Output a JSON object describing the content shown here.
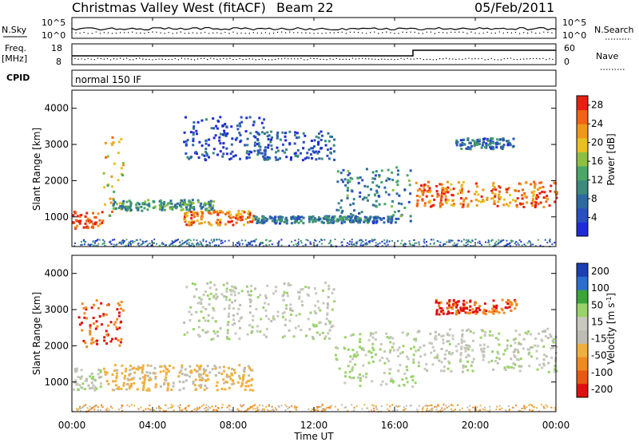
{
  "header": {
    "station": "Christmas Valley West (fitACF)",
    "beam": "Beam 22",
    "date": "05/Feb/2011"
  },
  "top_panels": {
    "nsky_label": "N.Sky",
    "nsky_ticks": [
      "10^5",
      "10^0"
    ],
    "nsearch_label": "N.Search",
    "nsearch_ticks": [
      "10^5",
      "10^0"
    ],
    "freq_label_line1": "Freq.",
    "freq_label_line2": "[MHz]",
    "freq_ticks": [
      "18",
      "8"
    ],
    "nave_label": "Nave",
    "nave_ticks": [
      "60",
      "0"
    ],
    "cpid_label": "CPID",
    "cpid_value": "normal 150 IF"
  },
  "colors": {
    "power_scale": [
      "#1f2bd8",
      "#2a4fc2",
      "#2e6aa0",
      "#3c8a7c",
      "#4aa768",
      "#8dc040",
      "#e8c020",
      "#f0961a",
      "#f06414",
      "#e82010"
    ],
    "velocity_scale": [
      "#1b3fb5",
      "#2a6fd0",
      "#3aa63a",
      "#9ad36a",
      "#c8c8be",
      "#bdbdb5",
      "#f0b040",
      "#f08a20",
      "#e85a10",
      "#e01010"
    ]
  },
  "chart_data": [
    {
      "type": "heatmap",
      "title": "",
      "quantity": "Power",
      "ylabel": "Slant Range [km]",
      "xlabel": "Time UT",
      "xlim": [
        "00:00",
        "00:00"
      ],
      "x_ticks": [
        "00:00",
        "04:00",
        "08:00",
        "12:00",
        "16:00",
        "20:00",
        "00:00"
      ],
      "ylim": [
        180,
        4500
      ],
      "y_ticks": [
        1000,
        2000,
        3000,
        4000
      ],
      "colorbar_label": "Power [dB]",
      "colorbar_ticks": [
        4,
        8,
        12,
        16,
        20,
        24,
        28
      ],
      "colorbar_range": [
        0,
        30
      ],
      "features": [
        {
          "time_range": [
            0.0,
            1.5
          ],
          "range_km": [
            700,
            1200
          ],
          "level": 28
        },
        {
          "time_range": [
            1.5,
            2.5
          ],
          "range_km": [
            1000,
            3300
          ],
          "level": 20
        },
        {
          "time_range": [
            2.0,
            7.0
          ],
          "range_km": [
            1200,
            1500
          ],
          "level": 12
        },
        {
          "time_range": [
            5.5,
            9.0
          ],
          "range_km": [
            800,
            1200
          ],
          "level": 24
        },
        {
          "time_range": [
            5.5,
            9.5
          ],
          "range_km": [
            2600,
            3800
          ],
          "level": 4
        },
        {
          "time_range": [
            9.0,
            13.0
          ],
          "range_km": [
            2600,
            3400
          ],
          "level": 6
        },
        {
          "time_range": [
            9.0,
            16.0
          ],
          "range_km": [
            850,
            1050
          ],
          "level": 8
        },
        {
          "time_range": [
            13.0,
            16.8
          ],
          "range_km": [
            900,
            2400
          ],
          "level": 10
        },
        {
          "time_range": [
            17.0,
            24.0
          ],
          "range_km": [
            1300,
            2000
          ],
          "level": 24
        },
        {
          "time_range": [
            19.0,
            22.0
          ],
          "range_km": [
            2900,
            3200
          ],
          "level": 8
        }
      ]
    },
    {
      "type": "heatmap",
      "title": "",
      "quantity": "Velocity",
      "ylabel": "Slant Range [km]",
      "xlabel": "Time UT",
      "xlim": [
        "00:00",
        "00:00"
      ],
      "x_ticks": [
        "00:00",
        "04:00",
        "08:00",
        "12:00",
        "16:00",
        "20:00",
        "00:00"
      ],
      "ylim": [
        180,
        4500
      ],
      "y_ticks": [
        1000,
        2000,
        3000,
        4000
      ],
      "colorbar_label": "Velocity [m s",
      "colorbar_label_exp": "-1",
      "colorbar_label_close": "]",
      "colorbar_ticks": [
        200,
        100,
        50,
        15,
        -15,
        -50,
        -100,
        -200
      ],
      "features": [
        {
          "time_range": [
            0.3,
            2.5
          ],
          "range_km": [
            2000,
            3300
          ],
          "velocity": -200
        },
        {
          "time_range": [
            0.0,
            1.5
          ],
          "range_km": [
            800,
            1400
          ],
          "velocity": 0
        },
        {
          "time_range": [
            1.5,
            9.0
          ],
          "range_km": [
            800,
            1500
          ],
          "velocity": -60
        },
        {
          "time_range": [
            5.5,
            13.0
          ],
          "range_km": [
            2200,
            3800
          ],
          "velocity": 0
        },
        {
          "time_range": [
            13.0,
            17.0
          ],
          "range_km": [
            900,
            2400
          ],
          "velocity": 20
        },
        {
          "time_range": [
            17.0,
            24.0
          ],
          "range_km": [
            1300,
            2500
          ],
          "velocity": 0
        },
        {
          "time_range": [
            18.0,
            22.0
          ],
          "range_km": [
            2900,
            3300
          ],
          "velocity": -200
        }
      ]
    }
  ]
}
